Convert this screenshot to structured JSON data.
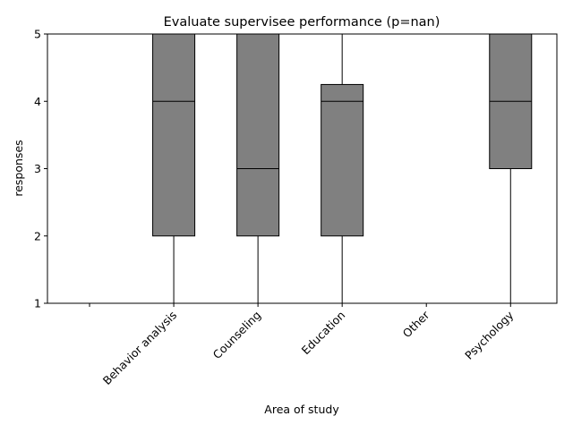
{
  "chart_data": {
    "type": "box",
    "title": "Evaluate supervisee performance (p=nan)",
    "xlabel": "Area of study",
    "ylabel": "responses",
    "ylim": [
      1,
      5
    ],
    "yticks": [
      1,
      2,
      3,
      4,
      5
    ],
    "categories": [
      "",
      "Behavior analysis",
      "Counseling",
      "Education",
      "Other",
      "Psychology"
    ],
    "boxes": [
      null,
      {
        "whisker_low": 1,
        "q1": 2,
        "median": 4,
        "q3": 5,
        "whisker_high": 5
      },
      {
        "whisker_low": 1,
        "q1": 2,
        "median": 3,
        "q3": 5,
        "whisker_high": 5
      },
      {
        "whisker_low": 1,
        "q1": 2,
        "median": 4,
        "q3": 4.25,
        "whisker_high": 5
      },
      {
        "whisker_low": 5,
        "q1": 5,
        "median": 5,
        "q3": 5,
        "whisker_high": 5
      },
      {
        "whisker_low": 1,
        "q1": 3,
        "median": 4,
        "q3": 5,
        "whisker_high": 5
      }
    ],
    "box_color": "#808080",
    "line_color": "#000000",
    "grid": false,
    "legend": "none"
  }
}
